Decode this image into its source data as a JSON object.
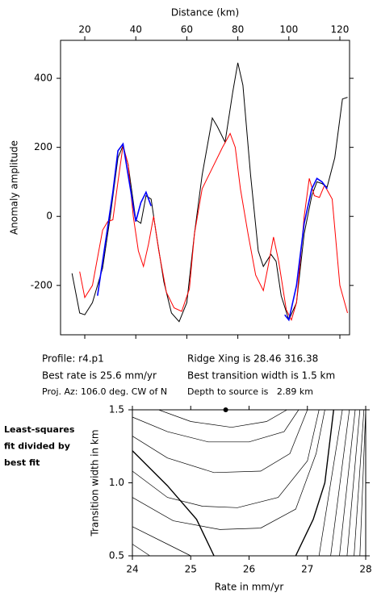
{
  "chart_data": [
    {
      "type": "line",
      "xlabel": "Distance (km)",
      "ylabel": "Anomaly amplitude",
      "xlim": [
        10.5,
        123.8
      ],
      "xticks": [
        20,
        40,
        60,
        80,
        100,
        120
      ],
      "ylim": [
        -343,
        510
      ],
      "yticks": [
        -200,
        0,
        200,
        400
      ],
      "series": [
        {
          "color": "#000000",
          "width": 1,
          "x": [
            15,
            18,
            20,
            23,
            27,
            30,
            33,
            35,
            37,
            40,
            42,
            44,
            46,
            48,
            51,
            54,
            57,
            60,
            63,
            66,
            70,
            72,
            75,
            78,
            80,
            82,
            85,
            88,
            90,
            93,
            95,
            97,
            100,
            103,
            106,
            109,
            111,
            113,
            115,
            118,
            121,
            123
          ],
          "values": [
            -165,
            -280,
            -285,
            -250,
            -150,
            0,
            170,
            205,
            150,
            -10,
            -20,
            60,
            50,
            -50,
            -190,
            -280,
            -305,
            -250,
            -50,
            120,
            285,
            260,
            215,
            360,
            445,
            380,
            120,
            -100,
            -145,
            -110,
            -130,
            -230,
            -300,
            -250,
            -50,
            60,
            100,
            95,
            85,
            170,
            340,
            345
          ]
        },
        {
          "color": "#ff0000",
          "width": 1,
          "x": [
            18,
            20,
            23,
            27,
            29,
            31,
            33,
            35,
            37,
            39,
            41,
            43,
            45,
            47,
            49,
            52,
            55,
            58,
            61,
            63,
            66,
            70,
            74,
            77,
            79,
            81,
            84,
            87,
            90,
            92,
            94,
            96,
            99,
            101,
            103,
            106,
            108,
            110,
            112,
            114,
            117,
            120,
            123
          ],
          "values": [
            -160,
            -235,
            -200,
            -40,
            -15,
            -10,
            100,
            205,
            150,
            0,
            -100,
            -145,
            -80,
            0,
            -100,
            -220,
            -265,
            -275,
            -210,
            -50,
            80,
            140,
            200,
            240,
            200,
            80,
            -50,
            -170,
            -215,
            -140,
            -60,
            -130,
            -270,
            -300,
            -250,
            0,
            110,
            60,
            55,
            90,
            50,
            -200,
            -280
          ]
        },
        {
          "color": "#0000ff",
          "width": 1.6,
          "x": [
            25,
            28,
            31,
            33,
            35,
            37,
            40,
            42,
            44,
            46,
            70,
            98.4,
            100,
            103,
            106,
            109,
            111,
            113,
            115
          ],
          "values": [
            -230,
            -80,
            70,
            190,
            210,
            120,
            -15,
            40,
            70,
            30,
            null,
            -285,
            -300,
            -200,
            -20,
            80,
            110,
            100,
            80
          ]
        }
      ]
    },
    {
      "type": "contour",
      "xlabel": "Rate in mm/yr",
      "ylabel": "Transition width in km",
      "xlim": [
        24,
        28
      ],
      "xticks": [
        24,
        25,
        26,
        27,
        28
      ],
      "ylim": [
        0.5,
        1.5
      ],
      "yticks": [
        0.5,
        {
          "value": 1,
          "label": "1.0"
        },
        1.5
      ],
      "best": {
        "x": 25.6,
        "y": 1.5
      },
      "contours": [
        {
          "width": 0.7,
          "x": [
            24.45,
            25.0,
            25.7,
            26.3,
            26.65
          ],
          "y": [
            1.5,
            1.42,
            1.38,
            1.42,
            1.5
          ]
        },
        {
          "width": 0.7,
          "x": [
            24.0,
            24.6,
            25.3,
            26.0,
            26.6,
            26.85
          ],
          "y": [
            1.45,
            1.35,
            1.28,
            1.28,
            1.35,
            1.5
          ]
        },
        {
          "width": 0.7,
          "x": [
            24.0,
            24.6,
            25.4,
            26.2,
            26.7,
            27.0
          ],
          "y": [
            1.32,
            1.17,
            1.07,
            1.08,
            1.2,
            1.5
          ]
        },
        {
          "width": 1.4,
          "x": [
            24.0,
            24.6,
            25.1,
            25.4
          ],
          "y": [
            1.22,
            0.98,
            0.75,
            0.5
          ]
        },
        {
          "width": 0.7,
          "x": [
            24.0,
            24.6,
            25.2,
            25.8,
            26.5,
            27.0,
            27.2
          ],
          "y": [
            1.08,
            0.9,
            0.84,
            0.83,
            0.9,
            1.15,
            1.5
          ]
        },
        {
          "width": 0.7,
          "x": [
            24.0,
            24.7,
            25.5,
            26.2,
            26.8,
            27.15,
            27.3
          ],
          "y": [
            0.9,
            0.74,
            0.68,
            0.69,
            0.82,
            1.2,
            1.5
          ]
        },
        {
          "width": 1.4,
          "x": [
            26.8,
            27.1,
            27.3,
            27.45
          ],
          "y": [
            0.5,
            0.75,
            1.0,
            1.5
          ]
        },
        {
          "width": 0.7,
          "x": [
            24.0,
            24.6,
            25.0
          ],
          "y": [
            0.7,
            0.58,
            0.5
          ]
        },
        {
          "width": 0.7,
          "x": [
            24.0,
            24.3
          ],
          "y": [
            0.58,
            0.5
          ]
        },
        {
          "width": 0.7,
          "x": [
            27.2,
            27.6
          ],
          "y": [
            0.5,
            1.5
          ]
        },
        {
          "width": 0.7,
          "x": [
            27.4,
            27.72
          ],
          "y": [
            0.5,
            1.5
          ]
        },
        {
          "width": 0.7,
          "x": [
            27.55,
            27.82
          ],
          "y": [
            0.5,
            1.5
          ]
        },
        {
          "width": 0.7,
          "x": [
            27.68,
            27.9
          ],
          "y": [
            0.5,
            1.5
          ]
        },
        {
          "width": 0.7,
          "x": [
            27.8,
            27.97
          ],
          "y": [
            0.5,
            1.5
          ]
        },
        {
          "width": 0.7,
          "x": [
            27.9,
            28.0
          ],
          "y": [
            0.5,
            1.5
          ]
        }
      ]
    }
  ],
  "annotations": [
    "Profile: r4.p1",
    "Best rate is 25.6 mm/yr",
    "Proj. Az: 106.0 deg. CW of N",
    "Ridge Xing is 28.46 316.38",
    "Best transition width is 1.5 km",
    "Depth to source is   2.89 km"
  ],
  "side_note": [
    "Least-squares",
    "fit divided by",
    "best fit"
  ]
}
